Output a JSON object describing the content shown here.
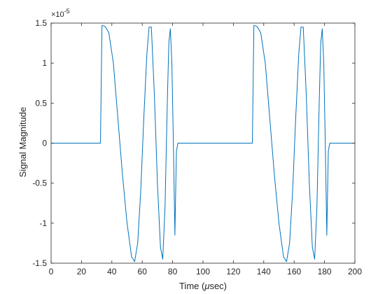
{
  "chart_data": {
    "type": "line",
    "xlabel_prefix": "Time (",
    "xlabel_unit": "μ",
    "xlabel_suffix": "sec)",
    "ylabel": "Signal Magnitude",
    "exponent_times": "×10",
    "exponent_power": "-5",
    "xlim": [
      0,
      200
    ],
    "ylim": [
      -1.5,
      1.5
    ],
    "xticks": [
      0,
      20,
      40,
      60,
      80,
      100,
      120,
      140,
      160,
      180,
      200
    ],
    "xtick_labels": [
      "0",
      "20",
      "40",
      "60",
      "80",
      "100",
      "120",
      "140",
      "160",
      "180",
      "200"
    ],
    "yticks": [
      -1.5,
      -1,
      -0.5,
      0,
      0.5,
      1,
      1.5
    ],
    "ytick_labels": [
      "-1.5",
      "-1",
      "-0.5",
      "0",
      "0.5",
      "1",
      "1.5"
    ],
    "grid": false,
    "series": [
      {
        "color": "#0072BD",
        "x": [
          0,
          32.5,
          33.5,
          35.5,
          38,
          41,
          44,
          47,
          50,
          53,
          55,
          57,
          59,
          61,
          63,
          64.5,
          66,
          68,
          70,
          72,
          73.5,
          75,
          76.5,
          77.5,
          78.5,
          79.5,
          80.5,
          81.5,
          82.5,
          83.5,
          132.5,
          133.5,
          135.5,
          138,
          141,
          144,
          147,
          150,
          153,
          155,
          157,
          159,
          161,
          163,
          164.5,
          166,
          168,
          170,
          172,
          173.5,
          175,
          176.5,
          177.5,
          178.5,
          179.5,
          180.5,
          181.5,
          182.5,
          183.5,
          200
        ],
        "y": [
          0,
          0,
          1.47,
          1.46,
          1.38,
          1.0,
          0.3,
          -0.4,
          -1.0,
          -1.42,
          -1.48,
          -1.25,
          -0.6,
          0.3,
          1.1,
          1.45,
          1.45,
          0.6,
          -0.5,
          -1.3,
          -1.45,
          -0.8,
          0.5,
          1.25,
          1.43,
          1.0,
          0.0,
          -1.15,
          -0.1,
          0,
          0,
          1.47,
          1.46,
          1.38,
          1.0,
          0.3,
          -0.4,
          -1.0,
          -1.42,
          -1.48,
          -1.25,
          -0.6,
          0.3,
          1.1,
          1.45,
          1.45,
          0.6,
          -0.5,
          -1.3,
          -1.45,
          -0.8,
          0.5,
          1.25,
          1.43,
          1.0,
          0.0,
          -1.15,
          -0.1,
          0,
          0
        ]
      }
    ]
  }
}
